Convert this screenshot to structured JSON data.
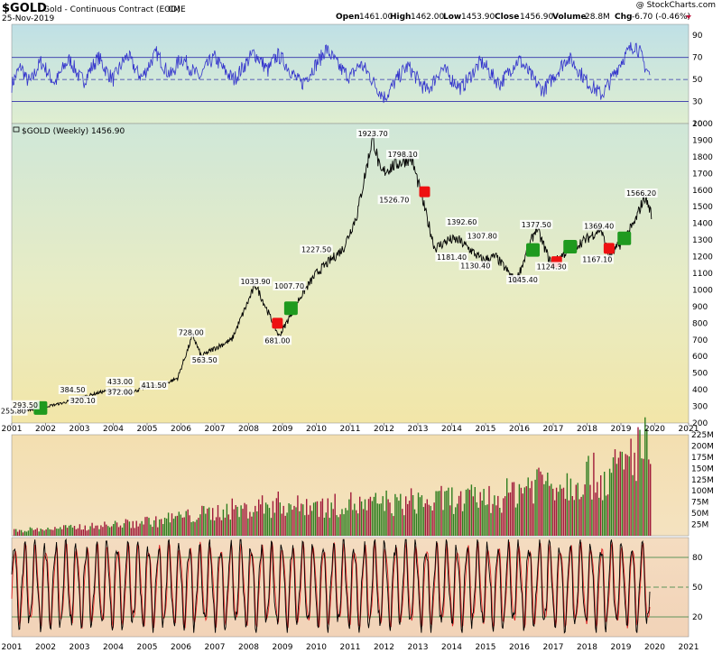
{
  "header": {
    "symbol": "$GOLD",
    "description": "Gold - Continuous Contract (EOD)",
    "exchange": "CME",
    "date": "25-Nov-2019",
    "quote": {
      "open_label": "Open",
      "open": "1461.00",
      "high_label": "High",
      "high": "1462.00",
      "low_label": "Low",
      "low": "1453.90",
      "close_label": "Close",
      "close": "1456.90",
      "volume_label": "Volume",
      "volume": "28.8M",
      "chg_label": "Chg",
      "chg": "-6.70 (-0.46%)"
    },
    "watermark": "@ StockCharts.com"
  },
  "colors": {
    "price_line": "#000000",
    "rsi_line": "#3333cc",
    "volume_up": "#2e7d1f",
    "volume_down": "#a01a3a",
    "stoch_k": "#000000",
    "stoch_d": "#dd2222",
    "marker_buy": "#1f9a1f",
    "marker_sell": "#ee1111"
  },
  "chart_data": [
    {
      "type": "line",
      "panel": "rsi",
      "ylim": [
        10,
        100
      ],
      "yticks": [
        10,
        30,
        50,
        70,
        90
      ],
      "reference_lines": [
        30,
        50,
        70
      ],
      "values": [
        45,
        55,
        62,
        50,
        48,
        58,
        66,
        60,
        52,
        47,
        55,
        63,
        68,
        60,
        52,
        49,
        57,
        64,
        70,
        62,
        55,
        50,
        58,
        66,
        72,
        64,
        56,
        52,
        60,
        68,
        74,
        66,
        58,
        54,
        62,
        70,
        66,
        60,
        55,
        52,
        60,
        66,
        70,
        64,
        58,
        54,
        50,
        56,
        62,
        68,
        74,
        70,
        64,
        58,
        66,
        72,
        68,
        62,
        56,
        50,
        46,
        52,
        58,
        64,
        70,
        78,
        72,
        66,
        60,
        56,
        52,
        58,
        64,
        60,
        54,
        46,
        40,
        34,
        38,
        46,
        52,
        58,
        62,
        56,
        50,
        44,
        40,
        46,
        54,
        60,
        56,
        50,
        46,
        42,
        48,
        54,
        60,
        66,
        62,
        56,
        50,
        46,
        52,
        58,
        64,
        68,
        62,
        56,
        50,
        44,
        40,
        46,
        52,
        58,
        64,
        70,
        66,
        60,
        54,
        48,
        44,
        40,
        36,
        42,
        50,
        58,
        66,
        72,
        78,
        82,
        74,
        62,
        54
      ]
    },
    {
      "type": "line",
      "panel": "price",
      "title": "$GOLD (Weekly) 1456.90",
      "x": [
        2001.0,
        2001.8,
        2002.5,
        2003.0,
        2003.6,
        2004.0,
        2004.5,
        2005.0,
        2005.4,
        2005.9,
        2006.35,
        2006.6,
        2007.0,
        2007.5,
        2008.2,
        2008.5,
        2008.9,
        2009.5,
        2010.0,
        2010.8,
        2011.2,
        2011.67,
        2011.9,
        2012.3,
        2012.8,
        2013.0,
        2013.5,
        2013.9,
        2014.2,
        2014.5,
        2014.9,
        2015.3,
        2015.9,
        2016.5,
        2016.95,
        2017.5,
        2017.95,
        2018.4,
        2018.65,
        2019.0,
        2019.4,
        2019.7,
        2019.9
      ],
      "values": [
        260,
        290,
        320,
        350,
        384,
        400,
        380,
        420,
        425,
        470,
        728,
        600,
        650,
        700,
        1033,
        900,
        720,
        950,
        1100,
        1250,
        1450,
        1923,
        1700,
        1750,
        1798,
        1650,
        1250,
        1300,
        1300,
        1250,
        1180,
        1200,
        1050,
        1377,
        1150,
        1250,
        1300,
        1369,
        1200,
        1280,
        1400,
        1566,
        1460
      ],
      "ylim": [
        200,
        2000
      ],
      "yticks": [
        200,
        300,
        400,
        500,
        600,
        700,
        800,
        900,
        1000,
        1100,
        1200,
        1300,
        1400,
        1500,
        1600,
        1700,
        1800,
        1900,
        2000
      ],
      "xlim": [
        2001,
        2021
      ],
      "xticks": [
        2001,
        2002,
        2003,
        2004,
        2005,
        2006,
        2007,
        2008,
        2009,
        2010,
        2011,
        2012,
        2013,
        2014,
        2015,
        2016,
        2017,
        2018,
        2019,
        2020,
        2021
      ],
      "annotations": [
        {
          "x": 2001.05,
          "y": 255.8,
          "text": "255.80"
        },
        {
          "x": 2001.4,
          "y": 293.5,
          "text": "293.50"
        },
        {
          "x": 2003.1,
          "y": 320.1,
          "text": "320.10"
        },
        {
          "x": 2002.8,
          "y": 384.5,
          "text": "384.50"
        },
        {
          "x": 2004.2,
          "y": 372.0,
          "text": "372.00"
        },
        {
          "x": 2004.2,
          "y": 433.0,
          "text": "433.00"
        },
        {
          "x": 2005.2,
          "y": 411.5,
          "text": "411.50"
        },
        {
          "x": 2006.3,
          "y": 728.0,
          "text": "728.00"
        },
        {
          "x": 2006.7,
          "y": 563.5,
          "text": "563.50"
        },
        {
          "x": 2008.2,
          "y": 1033.9,
          "text": "1033.90"
        },
        {
          "x": 2008.85,
          "y": 681.0,
          "text": "681.00"
        },
        {
          "x": 2009.2,
          "y": 1007.7,
          "text": "1007.70"
        },
        {
          "x": 2010.0,
          "y": 1227.5,
          "text": "1227.50"
        },
        {
          "x": 2011.67,
          "y": 1923.7,
          "text": "1923.70"
        },
        {
          "x": 2012.55,
          "y": 1798.1,
          "text": "1798.10"
        },
        {
          "x": 2012.3,
          "y": 1526.7,
          "text": "1526.70"
        },
        {
          "x": 2014.3,
          "y": 1392.6,
          "text": "1392.60"
        },
        {
          "x": 2014.0,
          "y": 1181.4,
          "text": "1181.40"
        },
        {
          "x": 2014.9,
          "y": 1307.8,
          "text": "1307.80"
        },
        {
          "x": 2014.7,
          "y": 1130.4,
          "text": "1130.40"
        },
        {
          "x": 2016.5,
          "y": 1377.5,
          "text": "1377.50"
        },
        {
          "x": 2016.1,
          "y": 1045.4,
          "text": "1045.40"
        },
        {
          "x": 2016.95,
          "y": 1124.3,
          "text": "1124.30"
        },
        {
          "x": 2018.35,
          "y": 1369.4,
          "text": "1369.40"
        },
        {
          "x": 2018.3,
          "y": 1167.1,
          "text": "1167.10"
        },
        {
          "x": 2019.6,
          "y": 1566.2,
          "text": "1566.20"
        }
      ],
      "markers": [
        {
          "x": 2001.85,
          "y": 290,
          "type": "buy"
        },
        {
          "x": 2008.85,
          "y": 800,
          "type": "sell"
        },
        {
          "x": 2009.25,
          "y": 890,
          "type": "buy"
        },
        {
          "x": 2013.2,
          "y": 1590,
          "type": "sell"
        },
        {
          "x": 2016.4,
          "y": 1240,
          "type": "buy"
        },
        {
          "x": 2017.1,
          "y": 1170,
          "type": "sell"
        },
        {
          "x": 2017.5,
          "y": 1260,
          "type": "buy"
        },
        {
          "x": 2018.65,
          "y": 1250,
          "type": "sell"
        },
        {
          "x": 2019.1,
          "y": 1310,
          "type": "buy"
        }
      ]
    },
    {
      "type": "bar",
      "panel": "volume",
      "ylim": [
        0,
        225
      ],
      "yticks": [
        25,
        50,
        75,
        100,
        125,
        150,
        175,
        200,
        225
      ],
      "ytick_labels": [
        "25M",
        "50M",
        "75M",
        "100M",
        "125M",
        "150M",
        "175M",
        "200M",
        "225M"
      ],
      "values": [
        12,
        14,
        13,
        15,
        16,
        14,
        18,
        17,
        16,
        19,
        20,
        18,
        22,
        21,
        20,
        24,
        26,
        25,
        23,
        28,
        30,
        29,
        27,
        32,
        34,
        36,
        35,
        33,
        40,
        42,
        44,
        46,
        48,
        45,
        50,
        52,
        55,
        53,
        58,
        60,
        62,
        65,
        63,
        60,
        68,
        70,
        72,
        74,
        70,
        76,
        78,
        75,
        72,
        70,
        74,
        78,
        76,
        72,
        70,
        68,
        72,
        76,
        80,
        78,
        74,
        72,
        70,
        74,
        78,
        82,
        80,
        76,
        74,
        78,
        82,
        86,
        84,
        80,
        78,
        82,
        86,
        90,
        88,
        84,
        82,
        86,
        90,
        94,
        92,
        88,
        86,
        92,
        98,
        104,
        110,
        116,
        122,
        128,
        134,
        140,
        136,
        132,
        128,
        124,
        130,
        136,
        142,
        148,
        144,
        140,
        136,
        142,
        150,
        160,
        170,
        180,
        200,
        220,
        210,
        190
      ],
      "up_down": "alternating"
    },
    {
      "type": "line",
      "panel": "stochastic",
      "ylim": [
        0,
        100
      ],
      "yticks": [
        20,
        50,
        80
      ],
      "reference_lines": [
        20,
        50,
        80
      ]
    }
  ]
}
